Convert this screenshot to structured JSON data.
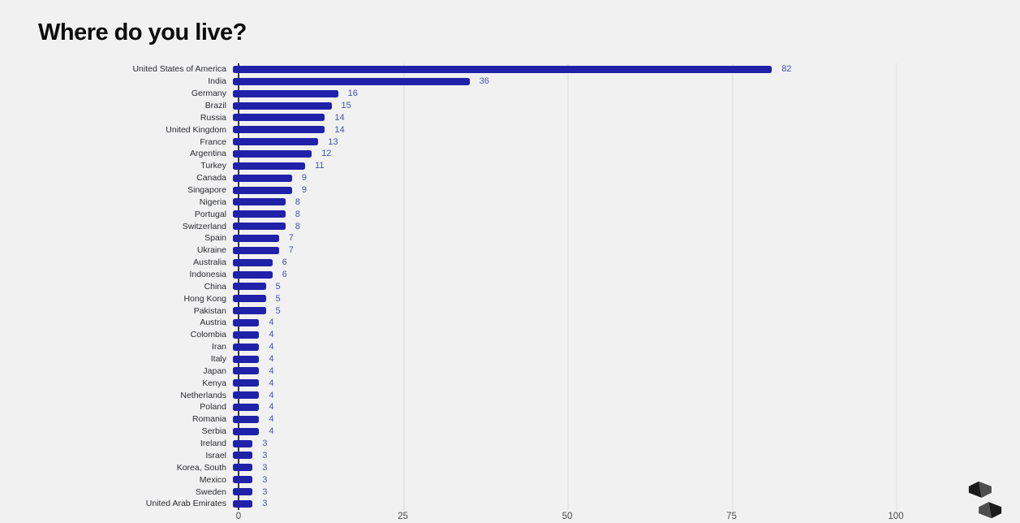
{
  "page": {
    "title": "Where do you live?"
  },
  "chart_data": {
    "type": "bar",
    "orientation": "horizontal",
    "title": "Where do you live?",
    "categories": [
      "United States of America",
      "India",
      "Germany",
      "Brazil",
      "Russia",
      "United Kingdom",
      "France",
      "Argentina",
      "Turkey",
      "Canada",
      "Singapore",
      "Nigeria",
      "Portugal",
      "Switzerland",
      "Spain",
      "Ukraine",
      "Australia",
      "Indonesia",
      "China",
      "Hong Kong",
      "Pakistan",
      "Austria",
      "Colombia",
      "Iran",
      "Italy",
      "Japan",
      "Kenya",
      "Netherlands",
      "Poland",
      "Romania",
      "Serbia",
      "Ireland",
      "Israel",
      "Korea, South",
      "Mexico",
      "Sweden",
      "United Arab Emirates"
    ],
    "values": [
      82,
      36,
      16,
      15,
      14,
      14,
      13,
      12,
      11,
      9,
      9,
      8,
      8,
      8,
      7,
      7,
      6,
      6,
      5,
      5,
      5,
      4,
      4,
      4,
      4,
      4,
      4,
      4,
      4,
      4,
      4,
      3,
      3,
      3,
      3,
      3,
      3
    ],
    "xlabel": "",
    "ylabel": "",
    "xlim": [
      0,
      100
    ],
    "x_ticks": [
      0,
      25,
      50,
      75,
      100
    ],
    "grid": true,
    "legend": "none",
    "value_labels": "shown right of bars",
    "colors": {
      "bar": "#2021a9",
      "value_label": "#4752ad",
      "category_label": "#2a2b2e",
      "tick_label": "#4c4c4e",
      "axis": "#3a3a3c",
      "gridline": "#e6e6e8",
      "background": "#f1f1f2",
      "title": "#0c0c0c"
    }
  },
  "branding": {
    "logo": "slido-logo"
  }
}
